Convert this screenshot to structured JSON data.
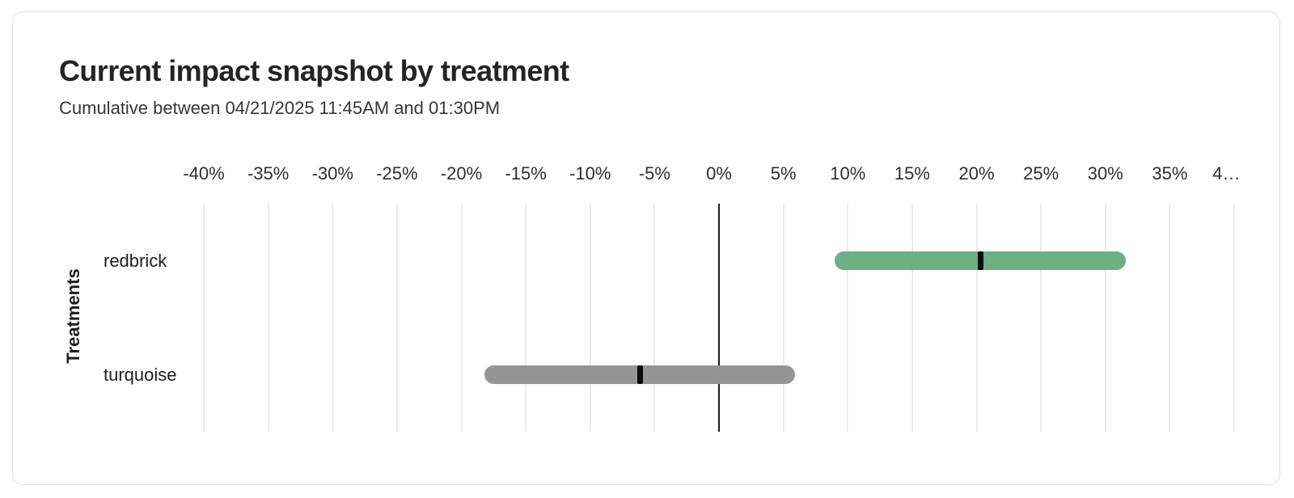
{
  "card": {
    "background": "#ffffff",
    "border_color": "#e2e2e2"
  },
  "chart_data": {
    "type": "bar",
    "subtype": "horizontal_range_bar_with_point_marker",
    "title": "Current impact snapshot by treatment",
    "subtitle": "Cumulative between 04/21/2025 11:45AM and 01:30PM",
    "xlabel": "",
    "ylabel": "Treatments",
    "x_unit": "%",
    "xlim": [
      -40,
      40
    ],
    "x_tick_step": 5,
    "x_tick_labels": [
      "-40%",
      "-35%",
      "-30%",
      "-25%",
      "-20%",
      "-15%",
      "-10%",
      "-5%",
      "0%",
      "5%",
      "10%",
      "15%",
      "20%",
      "25%",
      "30%",
      "35%",
      "4…"
    ],
    "grid": "vertical-only",
    "zero_line": true,
    "legend": "none",
    "categories": [
      "redbrick",
      "turquoise"
    ],
    "series": [
      {
        "name": "redbrick",
        "low": 9.0,
        "high": 31.6,
        "point": 20.3,
        "bar_color": "#6cb083",
        "marker_color": "#0b0b0b"
      },
      {
        "name": "turquoise",
        "low": -18.2,
        "high": 5.9,
        "point": -6.1,
        "bar_color": "#959595",
        "marker_color": "#0b0b0b"
      }
    ],
    "colors": {
      "gridline": "#ebebeb",
      "zero_line": "#1a1a1a",
      "tick_label": "#2e2e2e",
      "category_label": "#1d1d1d",
      "title": "#242424",
      "subtitle": "#363636"
    }
  }
}
